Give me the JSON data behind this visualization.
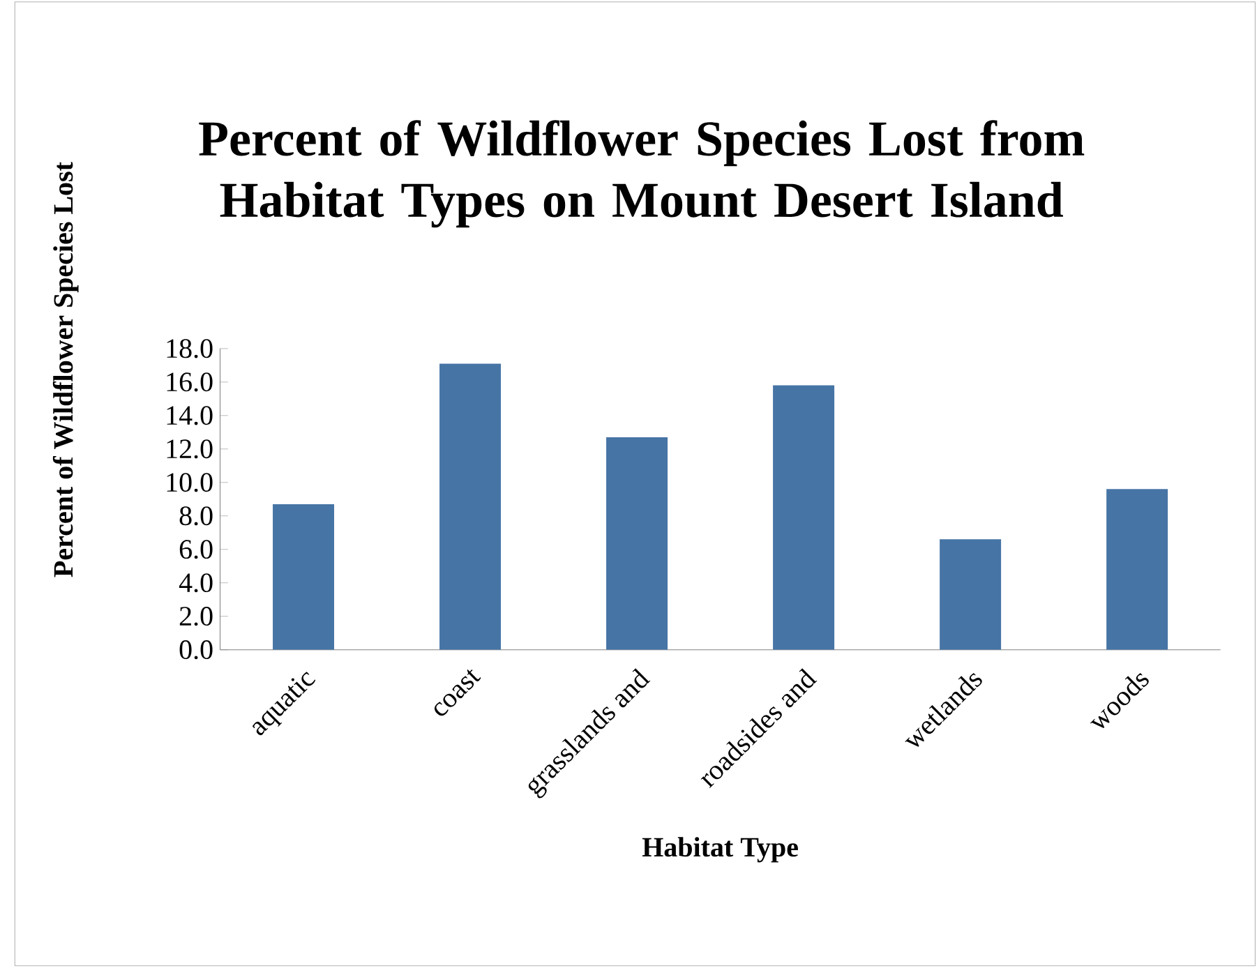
{
  "chart_data": {
    "type": "bar",
    "title": "Percent of Wildflower Species Lost from Habitat Types on Mount Desert Island",
    "xlabel": "Habitat Type",
    "ylabel": "Percent of Wildflower Species  Lost",
    "categories": [
      "aquatic",
      "coast",
      "grasslands and",
      "roadsides and",
      "wetlands",
      "woods"
    ],
    "values": [
      8.7,
      17.1,
      12.7,
      15.8,
      6.6,
      9.6
    ],
    "color": "#4674a5",
    "ylim": [
      0,
      18
    ],
    "yticks": [
      {
        "value": 0,
        "label": "0.0"
      },
      {
        "value": 2,
        "label": "2.0"
      },
      {
        "value": 4,
        "label": "4.0"
      },
      {
        "value": 6,
        "label": "6.0"
      },
      {
        "value": 8,
        "label": "8.0"
      },
      {
        "value": 10,
        "label": "10.0"
      },
      {
        "value": 12,
        "label": "12.0"
      },
      {
        "value": 14,
        "label": "14.0"
      },
      {
        "value": 16,
        "label": "16.0"
      },
      {
        "value": 18,
        "label": "18.0"
      }
    ]
  }
}
